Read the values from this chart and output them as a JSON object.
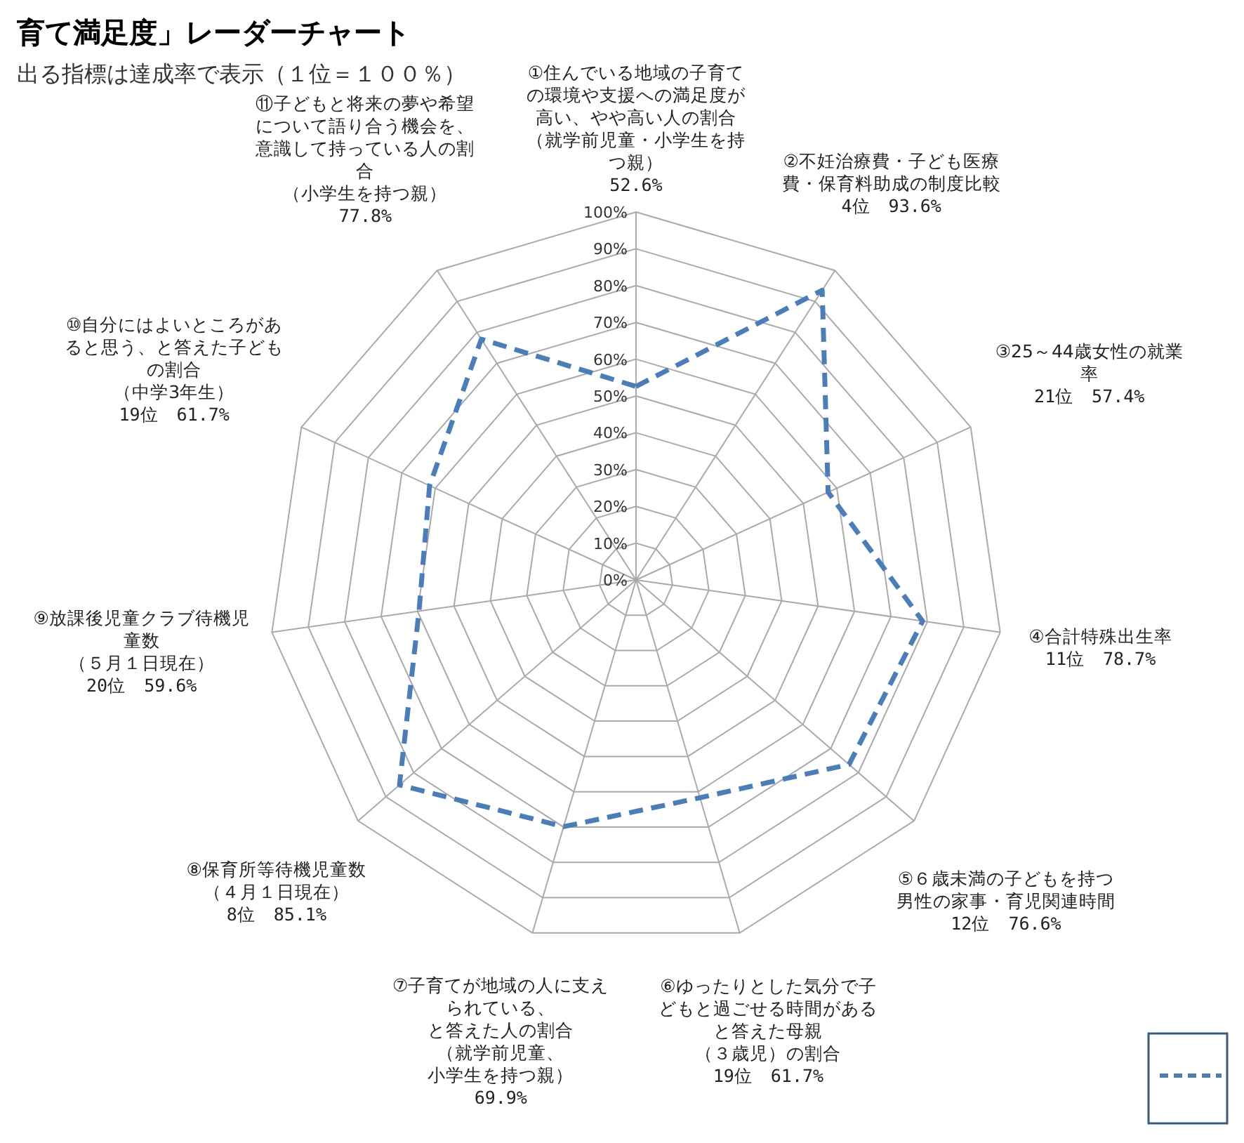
{
  "chart_data": {
    "type": "radar",
    "title": "育て満足度」レーダーチャート",
    "subtitle": "出る指標は達成率で表示（１位＝１００％）",
    "categories": [
      "①住んでいる地域の子育ての環境や支援への満足度が高い、やや高い人の割合（就学前児童・小学生を持つ親）",
      "②不妊治療費・子ども医療費・保育料助成の制度比較",
      "③25～44歳女性の就業率",
      "④合計特殊出生率",
      "⑤６歳未満の子どもを持つ男性の家事・育児関連時間",
      "⑥ゆったりとした気分で子どもと過ごせる時間があると答えた母親（３歳児）の割合",
      "⑦子育てが地域の人に支えられている、と答えた人の割合（就学前児童、小学生を持つ親）",
      "⑧保育所等待機児童数（４月１日現在）",
      "⑨放課後児童クラブ待機児童数（５月１日現在）",
      "⑩自分にはよいところがあると思う、と答えた子どもの割合（中学3年生）",
      "⑪子どもと将来の夢や希望について語り合う機会を、意識して持っている人の割合（小学生を持つ親）"
    ],
    "series": [
      {
        "color": "#4a7ebb",
        "values": [
          52.6,
          93.6,
          57.4,
          78.7,
          76.6,
          61.7,
          69.9,
          85.1,
          59.6,
          61.7,
          77.8
        ]
      }
    ],
    "annotations": [
      "52.6%",
      "4位　93.6%",
      "21位　57.4%",
      "11位　78.7%",
      "12位　76.6%",
      "19位　61.7%",
      "69.9%",
      "8位　85.1%",
      "20位　59.6%",
      "19位　61.7%",
      "77.8%"
    ],
    "line_style": "dashed",
    "grid": true,
    "ylim": [
      0,
      100
    ],
    "yticks": [
      {
        "value": 0,
        "label": "0%"
      },
      {
        "value": 10,
        "label": "10%"
      },
      {
        "value": 20,
        "label": "20%"
      },
      {
        "value": 30,
        "label": "30%"
      },
      {
        "value": 40,
        "label": "40%"
      },
      {
        "value": 50,
        "label": "50%"
      },
      {
        "value": 60,
        "label": "60%"
      },
      {
        "value": 70,
        "label": "70%"
      },
      {
        "value": 80,
        "label": "80%"
      },
      {
        "value": 90,
        "label": "90%"
      },
      {
        "value": 100,
        "label": "100%"
      }
    ]
  }
}
